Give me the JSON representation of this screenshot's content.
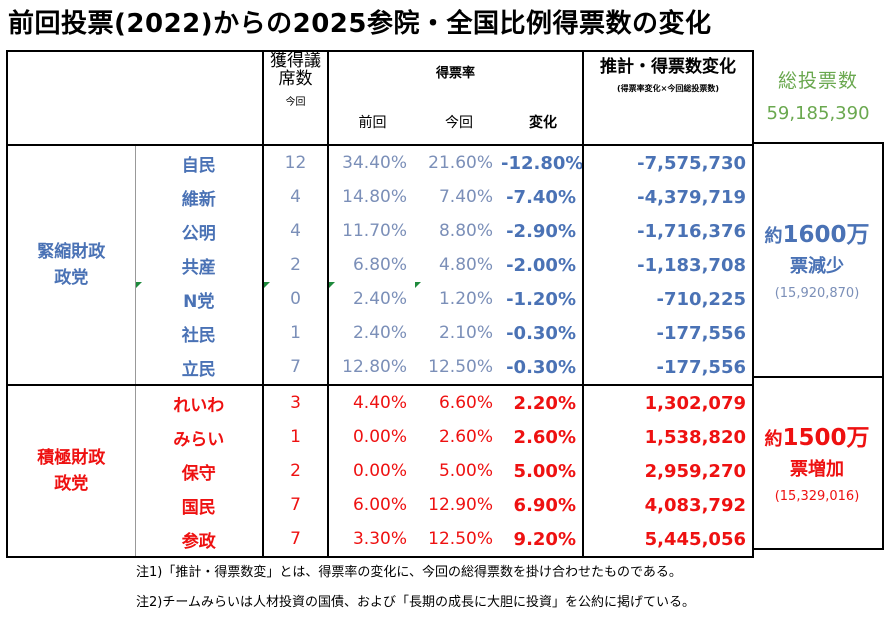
{
  "title": "前回投票(2022)からの2025参院・全国比例得票数の変化",
  "header": {
    "seats_line1": "獲得議",
    "seats_line2": "席数",
    "seats_sub": "今回",
    "rate_label": "得票率",
    "prev_label": "前回",
    "curr_label": "今回",
    "change_label": "変化",
    "estimate_label": "推計・得票数変化",
    "estimate_sub": "(得票率変化×今回総投票数)"
  },
  "total_votes": {
    "label": "総投票数",
    "value": "59,185,390"
  },
  "groups": [
    {
      "name_line1": "緊縮財政",
      "name_line2": "政党",
      "summary_prefix": "約",
      "summary_number": "1600万",
      "summary_suffix": "票減少",
      "summary_paren": "(15,920,870)",
      "rows": [
        {
          "party": "自民",
          "seats": "12",
          "prev": "34.40%",
          "curr": "21.60%",
          "change": "-12.80%",
          "estimate": "-7,575,730"
        },
        {
          "party": "維新",
          "seats": "4",
          "prev": "14.80%",
          "curr": "7.40%",
          "change": "-7.40%",
          "estimate": "-4,379,719"
        },
        {
          "party": "公明",
          "seats": "4",
          "prev": "11.70%",
          "curr": "8.80%",
          "change": "-2.90%",
          "estimate": "-1,716,376"
        },
        {
          "party": "共産",
          "seats": "2",
          "prev": "6.80%",
          "curr": "4.80%",
          "change": "-2.00%",
          "estimate": "-1,183,708"
        },
        {
          "party": "N党",
          "seats": "0",
          "prev": "2.40%",
          "curr": "1.20%",
          "change": "-1.20%",
          "estimate": "-710,225"
        },
        {
          "party": "社民",
          "seats": "1",
          "prev": "2.40%",
          "curr": "2.10%",
          "change": "-0.30%",
          "estimate": "-177,556"
        },
        {
          "party": "立民",
          "seats": "7",
          "prev": "12.80%",
          "curr": "12.50%",
          "change": "-0.30%",
          "estimate": "-177,556"
        }
      ]
    },
    {
      "name_line1": "積極財政",
      "name_line2": "政党",
      "summary_prefix": "約",
      "summary_number": "1500万",
      "summary_suffix": "票増加",
      "summary_paren": "(15,329,016)",
      "rows": [
        {
          "party": "れいわ",
          "seats": "3",
          "prev": "4.40%",
          "curr": "6.60%",
          "change": "2.20%",
          "estimate": "1,302,079"
        },
        {
          "party": "みらい",
          "seats": "1",
          "prev": "0.00%",
          "curr": "2.60%",
          "change": "2.60%",
          "estimate": "1,538,820"
        },
        {
          "party": "保守",
          "seats": "2",
          "prev": "0.00%",
          "curr": "5.00%",
          "change": "5.00%",
          "estimate": "2,959,270"
        },
        {
          "party": "国民",
          "seats": "7",
          "prev": "6.00%",
          "curr": "12.90%",
          "change": "6.90%",
          "estimate": "4,083,792"
        },
        {
          "party": "参政",
          "seats": "7",
          "prev": "3.30%",
          "curr": "12.50%",
          "change": "9.20%",
          "estimate": "5,445,056"
        }
      ]
    }
  ],
  "notes": [
    "注1)「推計・得票数変」とは、得票率の変化に、今回の総得票数を掛け合わせたものである。",
    "注2)チームみらいは人材投資の国債、および「長期の成長に大胆に投資」を公約に掲げている。"
  ],
  "colors": {
    "austerity": "#4a72b5",
    "active": "#ee1111",
    "total": "#6aa84f"
  }
}
